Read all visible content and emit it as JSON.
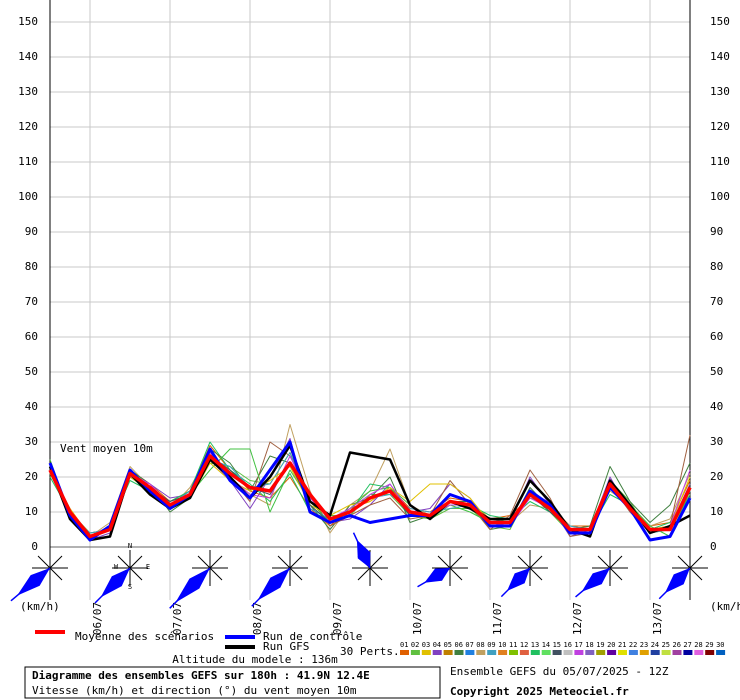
{
  "chart_data": {
    "type": "line",
    "annotation": "Vent moyen 10m",
    "y_unit_left": "(km/h)",
    "y_unit_right": "(km/h)",
    "categories": [
      null,
      null,
      "06/07",
      null,
      null,
      null,
      "07/07",
      null,
      null,
      null,
      "08/07",
      null,
      null,
      null,
      "09/07",
      null,
      null,
      null,
      "10/07",
      null,
      null,
      null,
      "11/07",
      null,
      null,
      null,
      "12/07",
      null,
      null,
      null,
      "13/07",
      null,
      null
    ],
    "ylim": [
      0,
      150
    ],
    "yticks": [
      0,
      10,
      20,
      30,
      40,
      50,
      60,
      70,
      80,
      90,
      100,
      110,
      120,
      130,
      140,
      150
    ],
    "grid": true,
    "series": [
      {
        "name": "Moyenne des scénarios",
        "color": "#ff0000",
        "values": [
          22,
          10,
          3,
          5,
          21,
          17,
          12,
          15,
          26,
          21,
          17,
          16,
          24,
          15,
          8,
          10,
          14,
          16,
          10,
          9,
          13,
          12,
          7,
          7,
          15,
          11,
          5,
          5,
          18,
          11,
          5,
          5,
          17
        ]
      },
      {
        "name": "Run de contrôle",
        "color": "#0000ff",
        "values": [
          24,
          9,
          2,
          6,
          22,
          16,
          11,
          15,
          28,
          19,
          14,
          22,
          30,
          10,
          7,
          9,
          7,
          8,
          9,
          9,
          15,
          13,
          6,
          6,
          16,
          12,
          4,
          4,
          17,
          11,
          2,
          3,
          14
        ]
      },
      {
        "name": "Run GFS",
        "color": "#000000",
        "values": [
          23,
          8,
          2,
          3,
          21,
          15,
          11,
          14,
          25,
          20,
          14,
          20,
          29,
          13,
          9,
          27,
          26,
          25,
          12,
          8,
          13,
          11,
          8,
          8,
          19,
          13,
          5,
          3,
          19,
          12,
          4,
          6,
          9
        ]
      }
    ],
    "perturbations_label": "30 Perts.",
    "perturbations": [
      {
        "color": "#e06000",
        "values": [
          23,
          9,
          3,
          6,
          22,
          18,
          13,
          16,
          29,
          22,
          16,
          14,
          20,
          11,
          6,
          11,
          13,
          17,
          11,
          10,
          14,
          13,
          8,
          9,
          14,
          12,
          6,
          6,
          17,
          11,
          6,
          7,
          19
        ]
      },
      {
        "color": "#60c040",
        "values": [
          21,
          10,
          4,
          5,
          20,
          16,
          12,
          14,
          24,
          23,
          19,
          18,
          27,
          14,
          9,
          9,
          15,
          15,
          9,
          8,
          11,
          11,
          6,
          5,
          16,
          10,
          4,
          4,
          19,
          13,
          4,
          5,
          15
        ]
      },
      {
        "color": "#c0a060",
        "values": [
          22,
          11,
          3,
          7,
          23,
          17,
          11,
          17,
          27,
          20,
          15,
          12,
          35,
          16,
          4,
          12,
          16,
          28,
          12,
          9,
          13,
          12,
          8,
          7,
          12,
          11,
          5,
          6,
          16,
          12,
          6,
          8,
          21
        ]
      },
      {
        "color": "#8040c0",
        "values": [
          24,
          8,
          2,
          4,
          20,
          18,
          14,
          15,
          25,
          19,
          11,
          20,
          31,
          10,
          7,
          8,
          12,
          18,
          10,
          11,
          18,
          14,
          6,
          7,
          20,
          12,
          3,
          5,
          20,
          10,
          4,
          6,
          18
        ]
      },
      {
        "color": "#20c060",
        "values": [
          20,
          10,
          3,
          6,
          19,
          16,
          13,
          16,
          30,
          22,
          18,
          13,
          21,
          10,
          8,
          10,
          18,
          17,
          9,
          9,
          12,
          12,
          9,
          8,
          13,
          10,
          6,
          5,
          15,
          12,
          5,
          7,
          14
        ]
      },
      {
        "color": "#408040",
        "values": [
          23,
          9,
          4,
          5,
          22,
          18,
          10,
          14,
          28,
          24,
          16,
          26,
          24,
          12,
          5,
          12,
          14,
          20,
          7,
          9,
          13,
          13,
          5,
          6,
          17,
          11,
          5,
          6,
          23,
          13,
          7,
          12,
          24
        ]
      },
      {
        "color": "#a06040",
        "values": [
          22,
          10,
          3,
          5,
          21,
          15,
          12,
          16,
          26,
          20,
          13,
          30,
          26,
          15,
          6,
          9,
          12,
          14,
          8,
          9,
          19,
          12,
          5,
          9,
          22,
          14,
          3,
          4,
          18,
          10,
          5,
          6,
          32
        ]
      },
      {
        "color": "#40c040",
        "values": [
          25,
          9,
          3,
          6,
          21,
          17,
          12,
          15,
          22,
          28,
          28,
          10,
          22,
          13,
          7,
          11,
          16,
          17,
          12,
          8,
          12,
          10,
          7,
          8,
          14,
          12,
          4,
          5,
          17,
          12,
          6,
          3,
          16
        ]
      },
      {
        "color": "#40a0c0",
        "values": [
          22,
          9,
          4,
          5,
          22,
          17,
          12,
          16,
          25,
          23,
          17,
          18,
          27,
          11,
          8,
          10,
          14,
          15,
          11,
          10,
          11,
          12,
          6,
          7,
          15,
          11,
          6,
          5,
          19,
          11,
          4,
          5,
          16
        ]
      },
      {
        "color": "#e0c000",
        "values": [
          21,
          11,
          3,
          5,
          20,
          16,
          11,
          14,
          24,
          19,
          16,
          19,
          23,
          12,
          9,
          12,
          13,
          17,
          13,
          18,
          18,
          14,
          7,
          7,
          16,
          11,
          4,
          5,
          18,
          11,
          5,
          6,
          20
        ]
      },
      {
        "color": "#c040e0",
        "values": [
          23,
          9,
          3,
          6,
          21,
          18,
          12,
          15,
          27,
          20,
          15,
          14,
          26,
          14,
          8,
          11,
          15,
          18,
          10,
          9,
          12,
          12,
          7,
          6,
          14,
          11,
          5,
          4,
          17,
          12,
          4,
          6,
          22
        ]
      },
      {
        "color": "#405060",
        "values": [
          22,
          10,
          3,
          5,
          22,
          17,
          13,
          15,
          26,
          22,
          17,
          15,
          24,
          12,
          7,
          10,
          14,
          16,
          9,
          9,
          13,
          12,
          8,
          7,
          15,
          10,
          5,
          5,
          18,
          11,
          5,
          5,
          17
        ]
      }
    ],
    "ensemble_legend": [
      {
        "label": "01",
        "color": "#e06000"
      },
      {
        "label": "02",
        "color": "#60c040"
      },
      {
        "label": "03",
        "color": "#e0c000"
      },
      {
        "label": "04",
        "color": "#8040c0"
      },
      {
        "label": "05",
        "color": "#c08000"
      },
      {
        "label": "06",
        "color": "#408040"
      },
      {
        "label": "07",
        "color": "#2080e0"
      },
      {
        "label": "08",
        "color": "#c0a060"
      },
      {
        "label": "09",
        "color": "#40a0c0"
      },
      {
        "label": "10",
        "color": "#e08020"
      },
      {
        "label": "11",
        "color": "#80c000"
      },
      {
        "label": "12",
        "color": "#e06040"
      },
      {
        "label": "13",
        "color": "#20c060"
      },
      {
        "label": "14",
        "color": "#60e060"
      },
      {
        "label": "15",
        "color": "#405060"
      },
      {
        "label": "16",
        "color": "#c0c0c0"
      },
      {
        "label": "17",
        "color": "#c040e0"
      },
      {
        "label": "18",
        "color": "#8060c0"
      },
      {
        "label": "19",
        "color": "#a0a000"
      },
      {
        "label": "20",
        "color": "#6000a0"
      },
      {
        "label": "21",
        "color": "#e0e000"
      },
      {
        "label": "22",
        "color": "#4080e0"
      },
      {
        "label": "23",
        "color": "#e0a000"
      },
      {
        "label": "24",
        "color": "#2040a0"
      },
      {
        "label": "25",
        "color": "#c0e040"
      },
      {
        "label": "26",
        "color": "#a040a0"
      },
      {
        "label": "27",
        "color": "#0000a0"
      },
      {
        "label": "28",
        "color": "#e060e0"
      },
      {
        "label": "29",
        "color": "#800000"
      },
      {
        "label": "30",
        "color": "#0060c0"
      }
    ],
    "direction_deg": [
      50,
      null,
      null,
      null,
      45,
      null,
      null,
      null,
      45,
      null,
      null,
      null,
      45,
      null,
      null,
      null,
      155,
      null,
      null,
      null,
      60,
      null,
      null,
      null,
      45,
      null,
      null,
      null,
      50,
      null,
      null,
      null,
      45
    ],
    "compass": [
      "N",
      "W",
      "E",
      "S"
    ],
    "altitude": "Altitude du modele : 136m",
    "title": "Diagramme des ensembles GEFS sur 180h : 41.9N 12.4E",
    "subtitle": "Vitesse (km/h) et direction (°) du vent moyen 10m",
    "run": "Ensemble GEFS du 05/07/2025 - 12Z",
    "copyright": "Copyright 2025 Meteociel.fr"
  }
}
